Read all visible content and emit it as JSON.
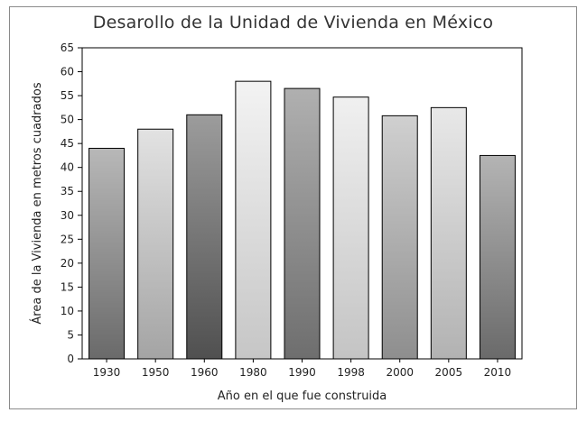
{
  "chart_data": {
    "type": "bar",
    "title": "Desarollo de la Unidad de Vivienda en México",
    "xlabel": "Año en el que fue construida",
    "ylabel": "Área de la Vivienda en metros cuadrados",
    "categories": [
      "1930",
      "1950",
      "1960",
      "1980",
      "1990",
      "1998",
      "2000",
      "2005",
      "2010"
    ],
    "values": [
      44,
      48,
      51,
      58,
      56.5,
      54.7,
      50.8,
      52.5,
      42.5
    ],
    "ylim": [
      0,
      65
    ],
    "yticks": [
      0,
      5,
      10,
      15,
      20,
      25,
      30,
      35,
      40,
      45,
      50,
      55,
      60,
      65
    ],
    "grid": false,
    "legend": "none",
    "bar_colors": [
      [
        "#b8b8b8",
        "#6a6a6a"
      ],
      [
        "#e2e2e2",
        "#a4a4a4"
      ],
      [
        "#9c9c9c",
        "#505050"
      ],
      [
        "#f3f3f3",
        "#c6c6c6"
      ],
      [
        "#b0b0b0",
        "#6e6e6e"
      ],
      [
        "#f0f0f0",
        "#c4c4c4"
      ],
      [
        "#d0d0d0",
        "#8e8e8e"
      ],
      [
        "#e8e8e8",
        "#b2b2b2"
      ],
      [
        "#b4b4b4",
        "#6a6a6a"
      ]
    ]
  }
}
